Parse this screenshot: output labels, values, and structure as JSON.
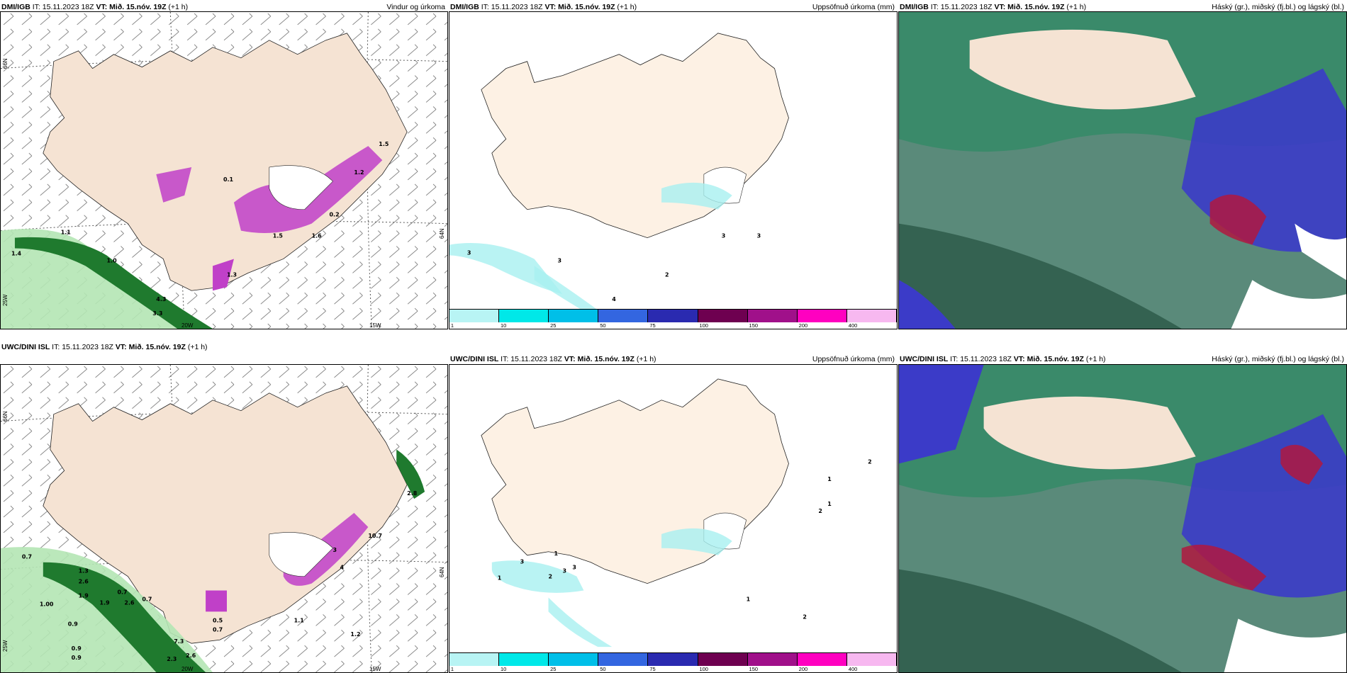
{
  "panels": [
    {
      "id": "p1",
      "model": "DMI/IGB",
      "it_label": "IT:",
      "it": "15.11.2023 18Z",
      "vt_label": "VT:",
      "vt": "Mið. 15.nóv. 19Z",
      "lead": "(+1 h)",
      "title": "Vindur og úrkoma",
      "type": "wind",
      "lat_label": "66N",
      "lat_label2": "64N",
      "lon_labels": [
        "20W",
        "15W"
      ],
      "lon_left": "25W",
      "values": [
        "1.1",
        "1.4",
        "1.0",
        "4.3",
        "3.3",
        "0.1",
        "1.5",
        "1.6",
        "0.2",
        "1.3",
        "1.5",
        "1.2"
      ]
    },
    {
      "id": "p2",
      "model": "DMI/IGB",
      "it_label": "IT:",
      "it": "15.11.2023 18Z",
      "vt_label": "VT:",
      "vt": "Mið. 15.nóv. 19Z",
      "lead": "(+1 h)",
      "title": "Uppsöfnuð úrkoma (mm)",
      "type": "precip",
      "values": [
        "3",
        "3",
        "3",
        "3",
        "4",
        "2"
      ]
    },
    {
      "id": "p3",
      "model": "DMI/IGB",
      "it_label": "IT:",
      "it": "15.11.2023 18Z",
      "vt_label": "VT:",
      "vt": "Mið. 15.nóv. 19Z",
      "lead": "(+1 h)",
      "title": "Háský (gr.), miðský (fj.bl.) og lágský (bl.)",
      "type": "cloud"
    },
    {
      "id": "p4",
      "model": "UWC/DINI ISL",
      "it_label": "IT:",
      "it": "15.11.2023 18Z",
      "vt_label": "VT:",
      "vt": "Mið. 15.nóv. 19Z",
      "lead": "(+1 h)",
      "title": "",
      "type": "wind",
      "lat_label": "66N",
      "lat_label2": "64N",
      "lon_labels": [
        "20W",
        "15W"
      ],
      "lon_left": "25W",
      "values": [
        "0.7",
        "2.6",
        "1.3",
        "1.9",
        "1.9",
        "1.00",
        "2.6",
        "0.7",
        "0.9",
        "0.7",
        "1.1",
        "1.2",
        "0.9",
        "0.9",
        "2.3",
        "2.6",
        "7.3",
        "2.8",
        "0.5",
        "0.7",
        "3",
        "4",
        "10.7"
      ]
    },
    {
      "id": "p5",
      "model": "UWC/DINI ISL",
      "it_label": "IT:",
      "it": "15.11.2023 18Z",
      "vt_label": "VT:",
      "vt": "Mið. 15.nóv. 19Z",
      "lead": "(+1 h)",
      "title": "Uppsöfnuð úrkoma (mm)",
      "type": "precip",
      "values": [
        "1",
        "3",
        "3",
        "2",
        "3",
        "1",
        "2",
        "1",
        "2",
        "1",
        "1",
        "2"
      ]
    },
    {
      "id": "p6",
      "model": "UWC/DINI ISL",
      "it_label": "IT:",
      "it": "15.11.2023 18Z",
      "vt_label": "VT:",
      "vt": "Mið. 15.nóv. 19Z",
      "lead": "(+1 h)",
      "title": "Háský (gr.), miðský (fj.bl.) og lágský (bl.)",
      "type": "cloud"
    }
  ],
  "legend": {
    "labels": [
      "1",
      "10",
      "25",
      "50",
      "75",
      "100",
      "150",
      "200",
      "400"
    ],
    "colors": [
      "#b8f4f4",
      "#00e8e8",
      "#00bfe8",
      "#3366e0",
      "#2a2ab0",
      "#6e0050",
      "#a0108a",
      "#ff00c0",
      "#f7b8f0"
    ]
  },
  "colors": {
    "land": "#f5e3d3",
    "land_light": "#fdf1e4",
    "precip_green": "#1f7a2e",
    "precip_light": "#b4e6b4",
    "magenta": "#c040c8",
    "cloud_green": "#3a8a6a",
    "cloud_blue": "#3b3bc8",
    "cloud_red": "#b01840"
  }
}
